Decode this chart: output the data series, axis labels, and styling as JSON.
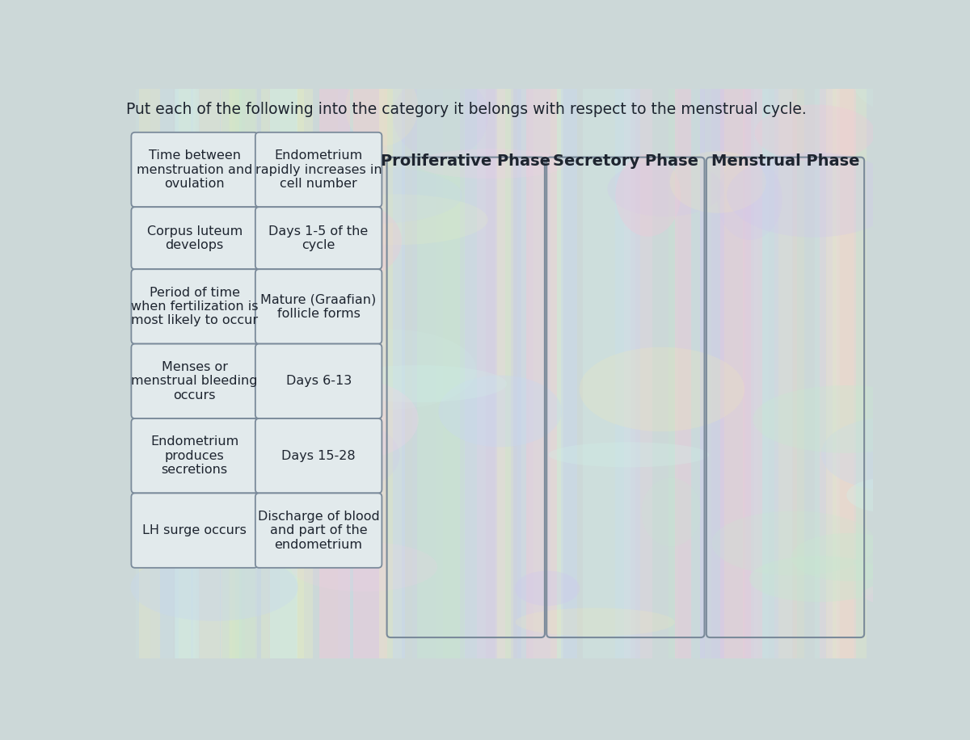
{
  "title": "Put each of the following into the category it belongs with respect to the menstrual cycle.",
  "title_fontsize": 13.5,
  "bg_base": "#ccd8d8",
  "left_column_items": [
    "Time between\nmenstruation and\novulation",
    "Corpus luteum\ndevelops",
    "Period of time\nwhen fertilization is\nmost likely to occur",
    "Menses or\nmenstrual bleeding\noccurs",
    "Endometrium\nproduces\nsecretions",
    "LH surge occurs"
  ],
  "right_column_items": [
    "Endometrium\nrapidly increases in\ncell number",
    "Days 1-5 of the\ncycle",
    "Mature (Graafian)\nfollicle forms",
    "Days 6-13",
    "Days 15-28",
    "Discharge of blood\nand part of the\nendometrium"
  ],
  "category_headers": [
    "Proliferative Phase",
    "Secretory Phase",
    "Menstrual Phase"
  ],
  "box_bg": "#e2eaec",
  "box_border": "#7a8a9a",
  "category_border": "#7a8a9a",
  "text_color": "#1e2530",
  "header_fontsize": 14,
  "item_fontsize": 11.5,
  "pastel_colors": [
    "#f0c8d8",
    "#c8e8d0",
    "#d0c8f0",
    "#f0e8b8",
    "#c8d8f0",
    "#e8f0c0",
    "#f8d0e8",
    "#d0f0e8"
  ],
  "pastel_alphas": [
    0.35,
    0.3,
    0.28,
    0.25,
    0.32,
    0.27,
    0.22,
    0.3
  ]
}
